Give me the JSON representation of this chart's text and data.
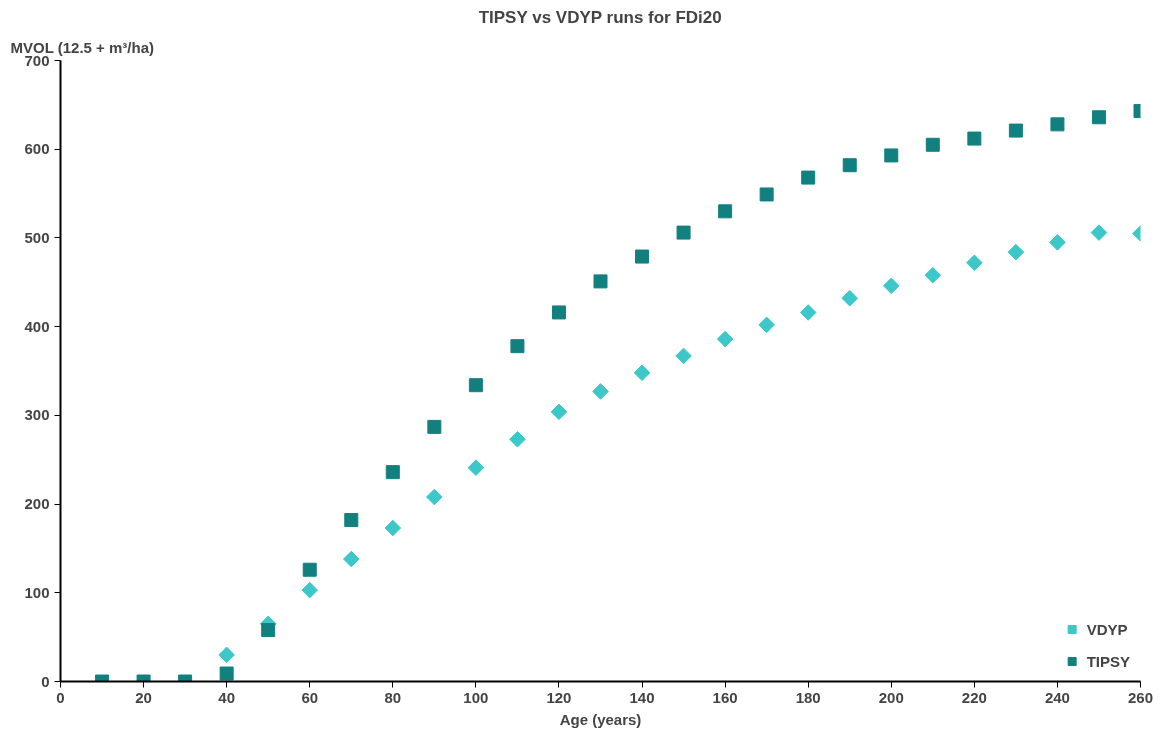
{
  "chart_data": {
    "type": "scatter",
    "title": "TIPSY vs VDYP runs for FDi20",
    "xlabel": "Age (years)",
    "ylabel": "MVOL (12.5 + m³/ha)",
    "x": [
      10,
      20,
      30,
      40,
      50,
      60,
      70,
      80,
      90,
      100,
      110,
      120,
      130,
      140,
      150,
      160,
      170,
      180,
      190,
      200,
      210,
      220,
      230,
      240,
      250,
      260
    ],
    "series": [
      {
        "name": "VDYP",
        "color": "#3cc8c8",
        "marker": "diamond",
        "values": [
          null,
          null,
          null,
          30,
          65,
          103,
          138,
          173,
          208,
          241,
          273,
          304,
          327,
          348,
          367,
          386,
          402,
          416,
          432,
          446,
          458,
          472,
          484,
          495,
          506,
          505
        ]
      },
      {
        "name": "TIPSY",
        "color": "#138080",
        "marker": "square",
        "values": [
          0,
          0,
          0,
          9,
          58,
          126,
          182,
          236,
          287,
          334,
          378,
          416,
          451,
          479,
          506,
          530,
          549,
          568,
          582,
          593,
          605,
          612,
          621,
          628,
          636,
          643
        ]
      }
    ],
    "xlim": [
      0,
      260
    ],
    "xticks": [
      0,
      20,
      40,
      60,
      80,
      100,
      120,
      140,
      160,
      180,
      200,
      220,
      240,
      260
    ],
    "ylim": [
      0,
      700
    ],
    "yticks": [
      0,
      100,
      200,
      300,
      400,
      500,
      600,
      700
    ],
    "grid": false,
    "legend": "bottom right"
  }
}
